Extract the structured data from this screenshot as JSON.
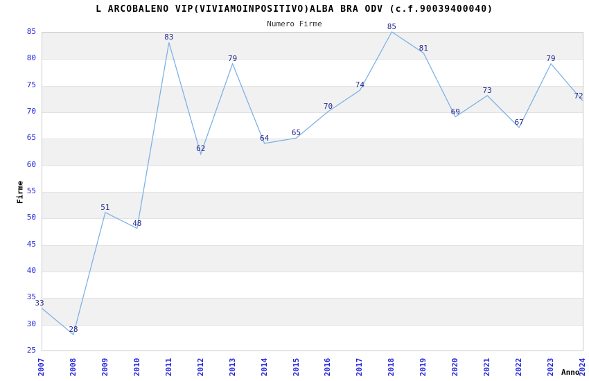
{
  "header": {
    "title": "L ARCOBALENO VIP(VIVIAMOINPOSITIVO)ALBA BRA ODV (c.f.90039400040)",
    "subtitle": "Numero Firme"
  },
  "chart_data": {
    "type": "line",
    "title": "L ARCOBALENO VIP(VIVIAMOINPOSITIVO)ALBA BRA ODV (c.f.90039400040)",
    "subtitle": "Numero Firme",
    "xlabel": "Anno",
    "ylabel": "Firme",
    "x": [
      2007,
      2008,
      2009,
      2010,
      2011,
      2012,
      2013,
      2014,
      2015,
      2016,
      2017,
      2018,
      2019,
      2020,
      2021,
      2022,
      2023,
      2024
    ],
    "values": [
      33,
      28,
      51,
      48,
      83,
      62,
      79,
      64,
      65,
      70,
      74,
      85,
      81,
      69,
      73,
      67,
      79,
      72
    ],
    "ylim": [
      25,
      85
    ],
    "ytick_step": 5,
    "grid": "horizontal, alternating shaded bands every 5 units",
    "legend": "none",
    "colors": {
      "line": "#7db2e5",
      "point_label": "#262a8f",
      "tick_label": "#2222dd",
      "band": "#f1f1f1",
      "gridline": "#e2e2e2",
      "plot_border": "#c9c9c9",
      "title": "#000000",
      "subtitle": "#333333"
    }
  }
}
